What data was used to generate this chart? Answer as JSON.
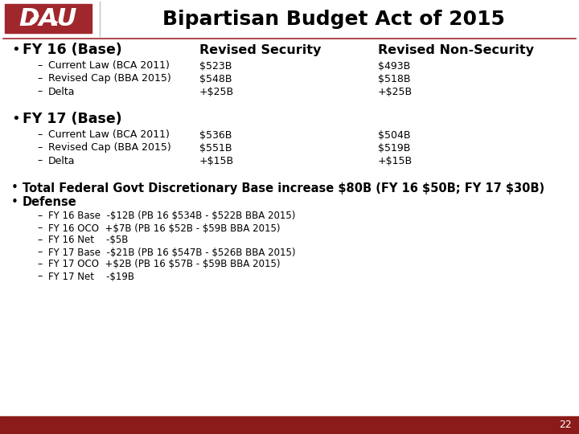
{
  "title": "Bipartisan Budget Act of 2015",
  "bg_color": "#ffffff",
  "header_line_color": "#a0282d",
  "footer_color": "#8b1a1a",
  "page_number": "22",
  "logo_color": "#a0282d",
  "content": [
    {
      "type": "bullet_large",
      "text": "FY 16 (Base)",
      "col2": "Revised Security",
      "col3": "Revised Non-Security",
      "sub_items": [
        {
          "label": "Current Law (BCA 2011)",
          "col2": "$523B",
          "col3": "$493B"
        },
        {
          "label": "Revised Cap (BBA 2015)",
          "col2": "$548B",
          "col3": "$518B"
        },
        {
          "label": "Delta",
          "col2": "+$25B",
          "col3": "+$25B"
        }
      ]
    },
    {
      "type": "bullet_large",
      "text": "FY 17 (Base)",
      "col2": "",
      "col3": "",
      "sub_items": [
        {
          "label": "Current Law (BCA 2011)",
          "col2": "$536B",
          "col3": "$504B"
        },
        {
          "label": "Revised Cap (BBA 2015)",
          "col2": "$551B",
          "col3": "$519B"
        },
        {
          "label": "Delta",
          "col2": "+$15B",
          "col3": "+$15B"
        }
      ]
    },
    {
      "type": "bullet_bold",
      "text": "Total Federal Govt Discretionary Base increase $80B (FY 16 $50B; FY 17 $30B)"
    },
    {
      "type": "bullet_bold",
      "text": "Defense",
      "sub_items": [
        "FY 16 Base  -$12B (PB 16 $534B - $522B BBA 2015)",
        "FY 16 OCO  +$7B (PB 16 $52B - $59B BBA 2015)",
        "FY 16 Net    -$5B",
        "FY 17 Base  -$21B (PB 16 $547B - $526B BBA 2015)",
        "FY 17 OCO  +$2B (PB 16 $57B - $59B BBA 2015)",
        "FY 17 Net    -$19B"
      ]
    }
  ]
}
